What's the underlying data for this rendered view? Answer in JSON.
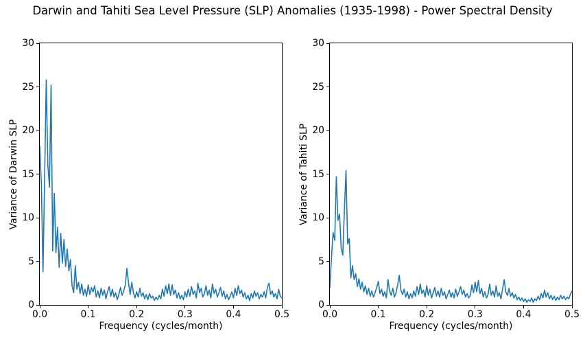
{
  "title": "Darwin and Tahiti Sea Level Pressure (SLP) Anomalies (1935-1998) - Power Spectral Density",
  "colors": {
    "line": "#1f77b4",
    "axis": "#000000",
    "background": "#ffffff"
  },
  "chart_data": [
    {
      "type": "line",
      "name": "darwin-psd",
      "title": "",
      "xlabel": "Frequency (cycles/month)",
      "ylabel": "Variance of Darwin SLP",
      "xlim": [
        0.0,
        0.5
      ],
      "ylim": [
        0,
        30
      ],
      "xticks": [
        0.0,
        0.1,
        0.2,
        0.3,
        0.4,
        0.5
      ],
      "xtick_labels": [
        "0.0",
        "0.1",
        "0.2",
        "0.3",
        "0.4",
        "0.5"
      ],
      "yticks": [
        0,
        5,
        10,
        15,
        20,
        25,
        30
      ],
      "ytick_labels": [
        "0",
        "5",
        "10",
        "15",
        "20",
        "25",
        "30"
      ],
      "grid": false,
      "legend": null,
      "x_start": 0.0,
      "x_step": 0.0033333,
      "values": [
        18.2,
        13.8,
        3.8,
        14.5,
        25.8,
        16.0,
        13.5,
        25.2,
        6.2,
        12.8,
        6.0,
        8.9,
        4.3,
        8.2,
        4.8,
        7.5,
        4.4,
        6.4,
        3.9,
        5.2,
        2.2,
        1.4,
        4.5,
        1.8,
        2.6,
        1.3,
        2.4,
        1.1,
        1.8,
        1.0,
        2.3,
        1.2,
        2.0,
        1.5,
        2.2,
        0.9,
        1.6,
        0.8,
        1.9,
        1.1,
        1.7,
        0.7,
        1.5,
        2.1,
        1.0,
        1.8,
        0.9,
        1.4,
        0.6,
        1.2,
        2.0,
        1.1,
        1.6,
        2.3,
        4.2,
        2.5,
        1.2,
        2.6,
        1.4,
        0.8,
        1.5,
        0.9,
        1.9,
        1.0,
        1.4,
        0.7,
        1.2,
        0.6,
        1.3,
        0.8,
        1.0,
        0.5,
        0.9,
        0.6,
        1.1,
        0.7,
        1.8,
        1.0,
        2.2,
        1.3,
        2.4,
        1.1,
        2.3,
        1.2,
        1.7,
        0.8,
        1.4,
        0.7,
        1.1,
        0.6,
        1.5,
        0.9,
        1.8,
        1.0,
        2.1,
        1.2,
        1.6,
        0.8,
        2.5,
        1.4,
        1.9,
        0.9,
        1.3,
        2.2,
        1.1,
        1.7,
        0.8,
        2.4,
        1.3,
        1.8,
        0.9,
        1.4,
        2.0,
        1.0,
        1.6,
        0.7,
        1.2,
        0.6,
        1.0,
        1.5,
        0.8,
        1.9,
        1.1,
        2.2,
        1.3,
        1.7,
        0.9,
        1.4,
        0.7,
        1.1,
        0.5,
        1.3,
        0.8,
        1.6,
        1.0,
        1.4,
        0.7,
        1.2,
        0.9,
        1.5,
        0.8,
        2.0,
        2.5,
        1.2,
        1.6,
        0.9,
        1.3,
        0.7,
        1.8,
        1.0,
        0.8
      ]
    },
    {
      "type": "line",
      "name": "tahiti-psd",
      "title": "",
      "xlabel": "Frequency (cycles/month)",
      "ylabel": "Variance of Tahiti SLP",
      "xlim": [
        0.0,
        0.5
      ],
      "ylim": [
        0,
        30
      ],
      "xticks": [
        0.0,
        0.1,
        0.2,
        0.3,
        0.4,
        0.5
      ],
      "xtick_labels": [
        "0.0",
        "0.1",
        "0.2",
        "0.3",
        "0.4",
        "0.5"
      ],
      "yticks": [
        0,
        5,
        10,
        15,
        20,
        25,
        30
      ],
      "ytick_labels": [
        "0",
        "5",
        "10",
        "15",
        "20",
        "25",
        "30"
      ],
      "grid": false,
      "legend": null,
      "x_start": 0.0,
      "x_step": 0.0033333,
      "values": [
        2.0,
        5.5,
        8.3,
        7.4,
        14.7,
        9.7,
        10.4,
        6.5,
        5.7,
        11.0,
        15.4,
        7.0,
        7.6,
        3.1,
        4.5,
        2.9,
        3.6,
        2.1,
        3.0,
        1.8,
        2.6,
        1.5,
        2.2,
        1.2,
        1.9,
        1.0,
        1.6,
        0.9,
        1.4,
        2.0,
        2.7,
        1.3,
        1.8,
        1.0,
        1.5,
        0.8,
        2.9,
        1.6,
        1.1,
        1.9,
        0.9,
        1.4,
        2.3,
        3.4,
        1.7,
        1.2,
        1.8,
        0.9,
        1.5,
        0.7,
        1.3,
        0.8,
        1.6,
        1.0,
        2.1,
        1.2,
        2.4,
        1.3,
        1.7,
        0.9,
        2.2,
        1.1,
        1.8,
        0.8,
        1.4,
        2.0,
        1.0,
        1.6,
        0.9,
        1.9,
        1.1,
        1.5,
        0.7,
        1.2,
        1.7,
        0.9,
        1.4,
        0.8,
        1.8,
        1.0,
        1.5,
        2.1,
        1.2,
        1.7,
        0.9,
        1.3,
        0.8,
        1.1,
        2.3,
        1.4,
        2.6,
        1.5,
        2.8,
        1.3,
        1.9,
        0.9,
        1.5,
        0.8,
        1.2,
        2.4,
        1.1,
        1.6,
        0.9,
        2.2,
        1.0,
        1.4,
        0.7,
        1.8,
        2.9,
        1.5,
        1.1,
        1.9,
        1.0,
        1.4,
        0.8,
        1.2,
        0.6,
        0.9,
        0.5,
        0.8,
        0.4,
        0.7,
        0.3,
        0.6,
        0.4,
        0.8,
        0.3,
        0.7,
        0.5,
        1.0,
        0.6,
        1.3,
        0.8,
        1.7,
        0.9,
        1.4,
        0.7,
        1.1,
        0.6,
        1.0,
        0.5,
        0.9,
        0.6,
        1.1,
        0.7,
        1.0,
        0.6,
        0.9,
        0.7,
        1.2,
        1.6
      ]
    }
  ]
}
